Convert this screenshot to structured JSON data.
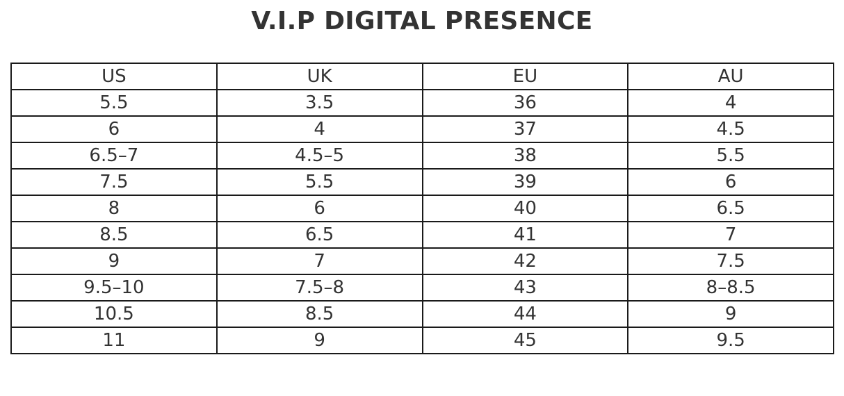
{
  "title": "V.I.P DIGITAL PRESENCE",
  "table": {
    "headers": [
      "US",
      "UK",
      "EU",
      "AU"
    ],
    "rows": [
      [
        "5.5",
        "3.5",
        "36",
        "4"
      ],
      [
        "6",
        "4",
        "37",
        "4.5"
      ],
      [
        "6.5–7",
        "4.5–5",
        "38",
        "5.5"
      ],
      [
        "7.5",
        "5.5",
        "39",
        "6"
      ],
      [
        "8",
        "6",
        "40",
        "6.5"
      ],
      [
        "8.5",
        "6.5",
        "41",
        "7"
      ],
      [
        "9",
        "7",
        "42",
        "7.5"
      ],
      [
        "9.5–10",
        "7.5–8",
        "43",
        "8–8.5"
      ],
      [
        "10.5",
        "8.5",
        "44",
        "9"
      ],
      [
        "11",
        "9",
        "45",
        "9.5"
      ]
    ]
  },
  "colors": {
    "text": "#333333",
    "border": "#1a1a1a",
    "background": "#ffffff"
  }
}
